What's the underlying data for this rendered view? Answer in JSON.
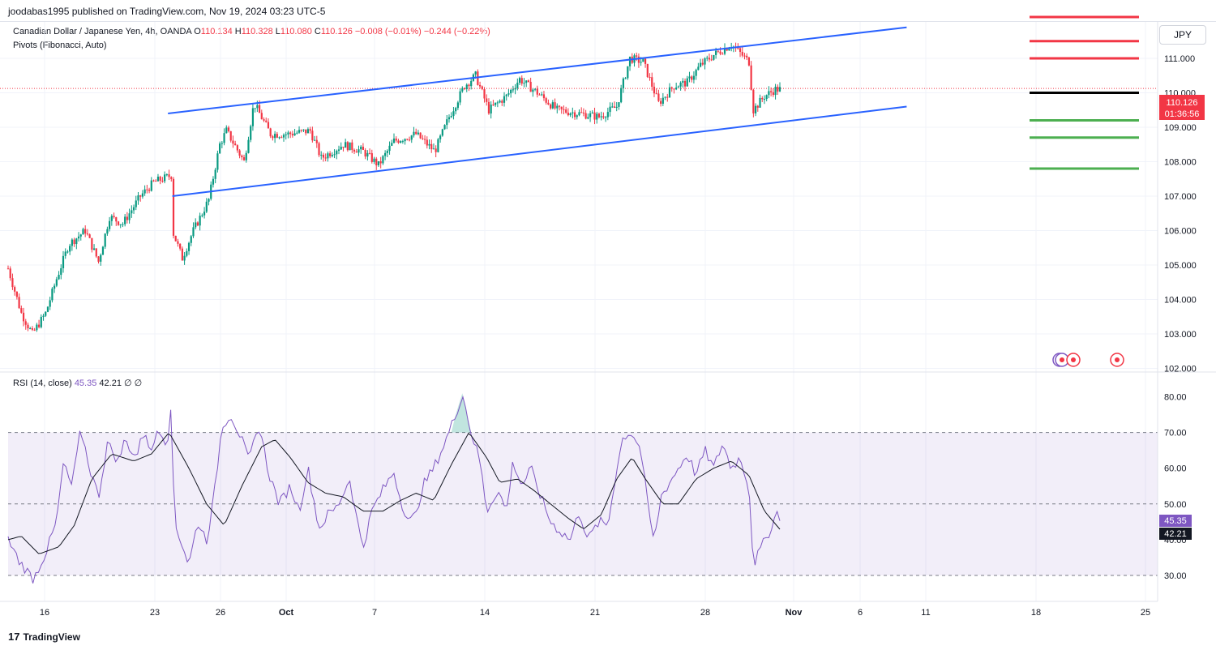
{
  "header": {
    "published": "joodabas1995 published on TradingView.com, Nov 19, 2024 03:23 UTC-5"
  },
  "legend": {
    "symbol": "Canadian Dollar / Japanese Yen, 4h, OANDA",
    "o_label": "O",
    "o": "110.134",
    "h_label": "H",
    "h": "110.328",
    "l_label": "L",
    "l": "110.080",
    "c_label": "C",
    "c": "110.126",
    "change": "−0.008 (−0.01%)",
    "change2": "−0.244 (−0.22%)",
    "indicator": "Pivots (Fibonacci, Auto)"
  },
  "currency_button": "JPY",
  "price_label": {
    "price": "110.126",
    "countdown": "01:36:56"
  },
  "rsi_legend": {
    "name": "RSI (14, close)",
    "rsi": "45.35",
    "ma": "42.21",
    "extra1": "∅",
    "extra2": "∅"
  },
  "rsi_labels": {
    "rsi": "45.35",
    "ma": "42.21"
  },
  "footer": {
    "logo": "17",
    "brand": "TradingView"
  },
  "colors": {
    "up": "#089981",
    "down": "#f23645",
    "channel": "#2962ff",
    "rsi": "#7e57c2",
    "rsi_ma": "#131722",
    "pivot_r": "#f23645",
    "pivot_s": "#4caf50",
    "pivot_p": "#000000"
  },
  "chart_data": [
    {
      "type": "candlestick",
      "symbol": "CADJPY",
      "timeframe": "4h",
      "ylim": [
        102,
        112
      ],
      "y_ticks": [
        "111.000",
        "110.000",
        "109.000",
        "108.000",
        "107.000",
        "106.000",
        "105.000",
        "104.000",
        "103.000",
        "102.000"
      ],
      "x_ticks": [
        "16",
        "23",
        "26",
        "Oct",
        "7",
        "14",
        "21",
        "28",
        "Nov",
        "6",
        "11",
        "18",
        "25"
      ],
      "close_path": [
        {
          "d": 0,
          "p": 104.9
        },
        {
          "d": 1.2,
          "p": 103.6
        },
        {
          "d": 2.2,
          "p": 103.0
        },
        {
          "d": 3.4,
          "p": 103.6
        },
        {
          "d": 4.4,
          "p": 104.6
        },
        {
          "d": 5.5,
          "p": 105.6
        },
        {
          "d": 7.0,
          "p": 106.0
        },
        {
          "d": 8.2,
          "p": 105.1
        },
        {
          "d": 9.2,
          "p": 106.4
        },
        {
          "d": 10.4,
          "p": 106.2
        },
        {
          "d": 12.0,
          "p": 107.0
        },
        {
          "d": 13.2,
          "p": 107.4
        },
        {
          "d": 14.8,
          "p": 107.6
        },
        {
          "d": 14.9,
          "p": 106.0
        },
        {
          "d": 15.8,
          "p": 105.2
        },
        {
          "d": 16.8,
          "p": 106.0
        },
        {
          "d": 17.6,
          "p": 106.5
        },
        {
          "d": 18.2,
          "p": 106.9
        },
        {
          "d": 19.2,
          "p": 108.5
        },
        {
          "d": 19.8,
          "p": 108.9
        },
        {
          "d": 21.4,
          "p": 108.0
        },
        {
          "d": 22.3,
          "p": 109.7
        },
        {
          "d": 23.8,
          "p": 108.8
        },
        {
          "d": 25.3,
          "p": 108.8
        },
        {
          "d": 27.4,
          "p": 108.9
        },
        {
          "d": 28.4,
          "p": 108.1
        },
        {
          "d": 30.4,
          "p": 108.5
        },
        {
          "d": 32.2,
          "p": 108.3
        },
        {
          "d": 33.6,
          "p": 107.9
        },
        {
          "d": 35.0,
          "p": 108.6
        },
        {
          "d": 37.0,
          "p": 108.8
        },
        {
          "d": 38.7,
          "p": 108.3
        },
        {
          "d": 40.0,
          "p": 109.3
        },
        {
          "d": 41.4,
          "p": 110.2
        },
        {
          "d": 42.4,
          "p": 110.5
        },
        {
          "d": 43.6,
          "p": 109.5
        },
        {
          "d": 45.2,
          "p": 109.9
        },
        {
          "d": 46.4,
          "p": 110.4
        },
        {
          "d": 48.0,
          "p": 110.0
        },
        {
          "d": 49.8,
          "p": 109.5
        },
        {
          "d": 51.8,
          "p": 109.4
        },
        {
          "d": 53.6,
          "p": 109.3
        },
        {
          "d": 55.2,
          "p": 109.6
        },
        {
          "d": 56.4,
          "p": 111.0
        },
        {
          "d": 57.6,
          "p": 110.9
        },
        {
          "d": 59.0,
          "p": 109.7
        },
        {
          "d": 60.4,
          "p": 110.2
        },
        {
          "d": 61.6,
          "p": 110.3
        },
        {
          "d": 62.8,
          "p": 110.8
        },
        {
          "d": 64.0,
          "p": 111.1
        },
        {
          "d": 65.6,
          "p": 111.4
        },
        {
          "d": 67.2,
          "p": 110.9
        },
        {
          "d": 67.6,
          "p": 109.5
        },
        {
          "d": 68.6,
          "p": 109.9
        },
        {
          "d": 69.6,
          "p": 110.1
        },
        {
          "d": 70.2,
          "p": 110.1
        }
      ],
      "channel": {
        "upper": [
          [
            14.5,
            109.4
          ],
          [
            81.5,
            111.9
          ]
        ],
        "lower": [
          [
            14.9,
            107.0
          ],
          [
            81.5,
            109.6
          ]
        ]
      },
      "pivots": {
        "R3": 112.2,
        "R2": 111.5,
        "R1": 111.0,
        "P": 110.0,
        "S1": 109.2,
        "S2": 108.7,
        "S3": 107.8
      }
    },
    {
      "type": "line",
      "name": "RSI (14, close)",
      "ylim": [
        25,
        85
      ],
      "y_ticks": [
        "80.00",
        "70.00",
        "60.00",
        "50.00",
        "40.00",
        "30.00"
      ],
      "bands": {
        "upper": 70,
        "middle": 50,
        "lower": 30
      },
      "rsi_path": [
        {
          "d": 0,
          "v": 40
        },
        {
          "d": 1,
          "v": 34
        },
        {
          "d": 2.3,
          "v": 29
        },
        {
          "d": 3.5,
          "v": 37
        },
        {
          "d": 4.4,
          "v": 45
        },
        {
          "d": 5,
          "v": 61
        },
        {
          "d": 5.8,
          "v": 55
        },
        {
          "d": 6.6,
          "v": 71
        },
        {
          "d": 7.4,
          "v": 60
        },
        {
          "d": 8.2,
          "v": 52
        },
        {
          "d": 9,
          "v": 67
        },
        {
          "d": 10,
          "v": 62
        },
        {
          "d": 10.6,
          "v": 68
        },
        {
          "d": 11.6,
          "v": 63
        },
        {
          "d": 12.4,
          "v": 71
        },
        {
          "d": 13,
          "v": 64
        },
        {
          "d": 13.6,
          "v": 72
        },
        {
          "d": 14.4,
          "v": 67
        },
        {
          "d": 14.8,
          "v": 76
        },
        {
          "d": 15.1,
          "v": 45
        },
        {
          "d": 16.4,
          "v": 33
        },
        {
          "d": 17.2,
          "v": 45
        },
        {
          "d": 18,
          "v": 40
        },
        {
          "d": 18.6,
          "v": 50
        },
        {
          "d": 19.4,
          "v": 72
        },
        {
          "d": 20.2,
          "v": 75
        },
        {
          "d": 21.2,
          "v": 68
        },
        {
          "d": 21.8,
          "v": 62
        },
        {
          "d": 22.8,
          "v": 72
        },
        {
          "d": 23.6,
          "v": 59
        },
        {
          "d": 24.6,
          "v": 50
        },
        {
          "d": 25.6,
          "v": 55
        },
        {
          "d": 26.4,
          "v": 48
        },
        {
          "d": 27.2,
          "v": 60
        },
        {
          "d": 28.2,
          "v": 43
        },
        {
          "d": 29,
          "v": 47
        },
        {
          "d": 29.8,
          "v": 49
        },
        {
          "d": 31,
          "v": 57
        },
        {
          "d": 31.6,
          "v": 46
        },
        {
          "d": 32.2,
          "v": 38
        },
        {
          "d": 33,
          "v": 48
        },
        {
          "d": 34,
          "v": 54
        },
        {
          "d": 35,
          "v": 59
        },
        {
          "d": 35.6,
          "v": 51
        },
        {
          "d": 36.4,
          "v": 45
        },
        {
          "d": 37,
          "v": 47
        },
        {
          "d": 37.6,
          "v": 55
        },
        {
          "d": 38.6,
          "v": 60
        },
        {
          "d": 39.6,
          "v": 67
        },
        {
          "d": 40.6,
          "v": 75
        },
        {
          "d": 41.2,
          "v": 81
        },
        {
          "d": 42,
          "v": 70
        },
        {
          "d": 42.8,
          "v": 62
        },
        {
          "d": 43.4,
          "v": 48
        },
        {
          "d": 44.4,
          "v": 54
        },
        {
          "d": 45.2,
          "v": 48
        },
        {
          "d": 45.8,
          "v": 62
        },
        {
          "d": 46.6,
          "v": 55
        },
        {
          "d": 47.4,
          "v": 60
        },
        {
          "d": 48.2,
          "v": 53
        },
        {
          "d": 49.2,
          "v": 45
        },
        {
          "d": 50.2,
          "v": 42
        },
        {
          "d": 51,
          "v": 40
        },
        {
          "d": 51.8,
          "v": 48
        },
        {
          "d": 52.6,
          "v": 40
        },
        {
          "d": 53.6,
          "v": 45
        },
        {
          "d": 54.4,
          "v": 44
        },
        {
          "d": 55.2,
          "v": 60
        },
        {
          "d": 55.8,
          "v": 69
        },
        {
          "d": 56.6,
          "v": 70
        },
        {
          "d": 57.4,
          "v": 65
        },
        {
          "d": 58,
          "v": 50
        },
        {
          "d": 58.6,
          "v": 39
        },
        {
          "d": 59.2,
          "v": 52
        },
        {
          "d": 60,
          "v": 56
        },
        {
          "d": 60.8,
          "v": 60
        },
        {
          "d": 61.6,
          "v": 64
        },
        {
          "d": 62.4,
          "v": 58
        },
        {
          "d": 63.2,
          "v": 65
        },
        {
          "d": 64,
          "v": 60
        },
        {
          "d": 64.8,
          "v": 67
        },
        {
          "d": 65.6,
          "v": 60
        },
        {
          "d": 66.4,
          "v": 63
        },
        {
          "d": 67.2,
          "v": 55
        },
        {
          "d": 67.6,
          "v": 33
        },
        {
          "d": 68.2,
          "v": 37
        },
        {
          "d": 69,
          "v": 42
        },
        {
          "d": 69.8,
          "v": 48
        },
        {
          "d": 70.2,
          "v": 45.35
        }
      ],
      "ma_path": [
        {
          "d": 0,
          "v": 40
        },
        {
          "d": 1.2,
          "v": 41
        },
        {
          "d": 2.8,
          "v": 36
        },
        {
          "d": 4.6,
          "v": 38
        },
        {
          "d": 6,
          "v": 44
        },
        {
          "d": 7.6,
          "v": 57
        },
        {
          "d": 9.4,
          "v": 64
        },
        {
          "d": 11.4,
          "v": 62
        },
        {
          "d": 13,
          "v": 64
        },
        {
          "d": 14.6,
          "v": 70
        },
        {
          "d": 16.4,
          "v": 60
        },
        {
          "d": 18,
          "v": 50
        },
        {
          "d": 19.6,
          "v": 44
        },
        {
          "d": 21.2,
          "v": 55
        },
        {
          "d": 23,
          "v": 66
        },
        {
          "d": 24.2,
          "v": 68
        },
        {
          "d": 25.6,
          "v": 63
        },
        {
          "d": 27.2,
          "v": 56
        },
        {
          "d": 28.8,
          "v": 53
        },
        {
          "d": 30.4,
          "v": 52
        },
        {
          "d": 32.2,
          "v": 48
        },
        {
          "d": 34,
          "v": 48
        },
        {
          "d": 35.6,
          "v": 51
        },
        {
          "d": 37,
          "v": 53
        },
        {
          "d": 38.6,
          "v": 51
        },
        {
          "d": 40.2,
          "v": 61
        },
        {
          "d": 41.8,
          "v": 70
        },
        {
          "d": 43.4,
          "v": 63
        },
        {
          "d": 44.6,
          "v": 56
        },
        {
          "d": 46.2,
          "v": 57
        },
        {
          "d": 47.6,
          "v": 54
        },
        {
          "d": 49.2,
          "v": 50
        },
        {
          "d": 50.8,
          "v": 46
        },
        {
          "d": 52.2,
          "v": 43
        },
        {
          "d": 53.8,
          "v": 47
        },
        {
          "d": 55.2,
          "v": 57
        },
        {
          "d": 56.6,
          "v": 63
        },
        {
          "d": 57.8,
          "v": 57
        },
        {
          "d": 59.4,
          "v": 50
        },
        {
          "d": 60.8,
          "v": 50
        },
        {
          "d": 62.4,
          "v": 57
        },
        {
          "d": 64,
          "v": 60
        },
        {
          "d": 65.6,
          "v": 62
        },
        {
          "d": 67.2,
          "v": 58
        },
        {
          "d": 68.6,
          "v": 48
        },
        {
          "d": 70.2,
          "v": 42.21
        }
      ]
    }
  ]
}
